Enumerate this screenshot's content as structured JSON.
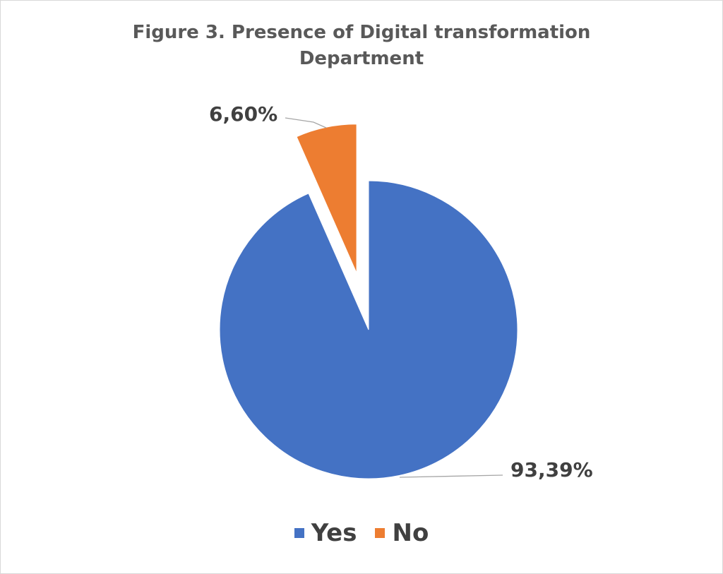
{
  "chart_data": {
    "type": "pie",
    "title_lines": [
      "Figure 3. Presence of Digital transformation",
      "Department"
    ],
    "categories": [
      "Yes",
      "No"
    ],
    "values": [
      93.39,
      6.6
    ],
    "data_labels": [
      "93,39%",
      "6,60%"
    ],
    "colors": [
      "#4472C4",
      "#ED7D31"
    ],
    "exploded": [
      false,
      true
    ],
    "legend_position": "bottom"
  }
}
